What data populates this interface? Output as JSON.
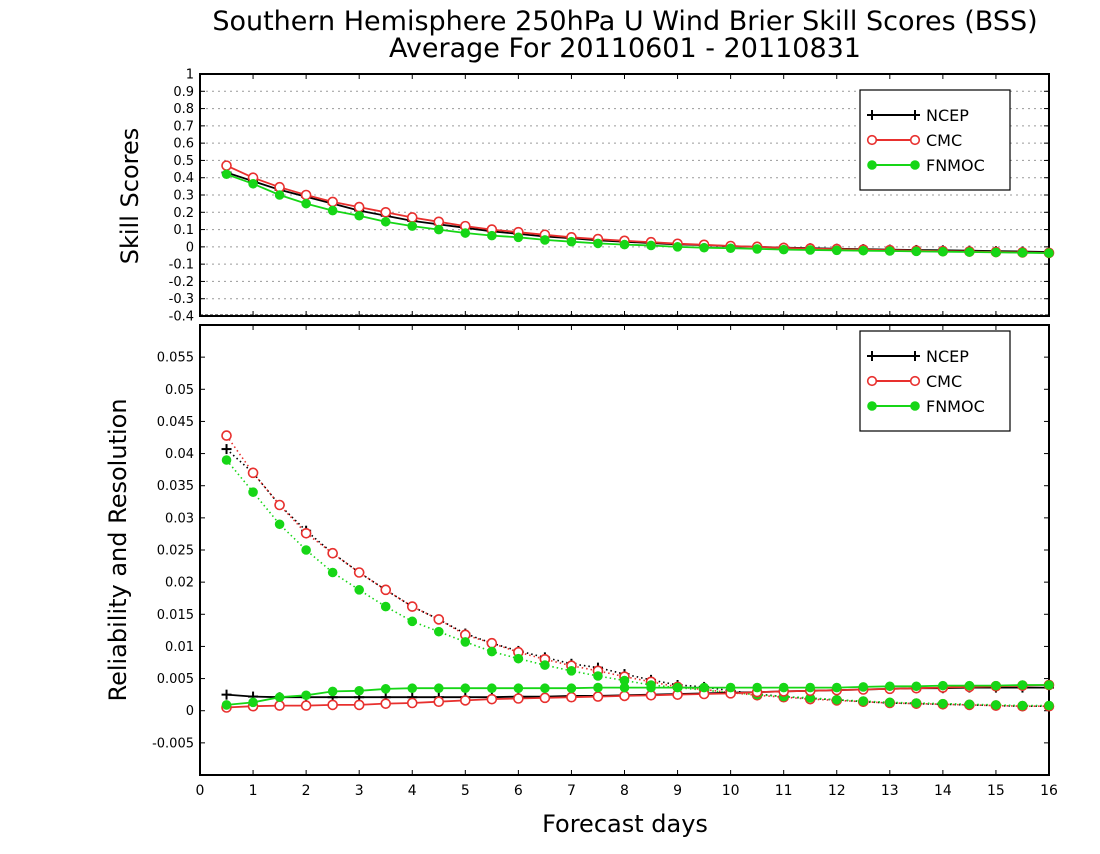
{
  "titles": {
    "line1": "Southern Hemisphere 250hPa U Wind Brier Skill Scores (BSS)",
    "line2": "Average For 20110601 - 20110831"
  },
  "colors": {
    "NCEP": "#000000",
    "CMC": "#e8302e",
    "FNMOC": "#16d616",
    "grid": "#9a9a9a",
    "frame": "#000000"
  },
  "chart_data": [
    {
      "type": "line",
      "ylabel": "Skill Scores",
      "xlabel": "Forecast days",
      "xlim": [
        0,
        16
      ],
      "ylim": [
        -0.4,
        1
      ],
      "x_ticks": [
        "0",
        "1",
        "2",
        "3",
        "4",
        "5",
        "6",
        "7",
        "8",
        "9",
        "10",
        "11",
        "12",
        "13",
        "14",
        "15",
        "16"
      ],
      "y_ticks": [
        "-0.4",
        "-0.3",
        "-0.2",
        "-0.1",
        "0",
        "0.1",
        "0.2",
        "0.3",
        "0.4",
        "0.5",
        "0.6",
        "0.7",
        "0.8",
        "0.9",
        "1"
      ],
      "grid": true,
      "legend_position": "top-right",
      "x": [
        0.5,
        1,
        1.5,
        2,
        2.5,
        3,
        3.5,
        4,
        4.5,
        5,
        5.5,
        6,
        6.5,
        7,
        7.5,
        8,
        8.5,
        9,
        9.5,
        10,
        10.5,
        11,
        11.5,
        12,
        12.5,
        13,
        13.5,
        14,
        14.5,
        15,
        15.5,
        16
      ],
      "series": [
        {
          "name": "NCEP",
          "marker": "plus",
          "values": [
            0.43,
            0.38,
            0.33,
            0.29,
            0.25,
            0.21,
            0.18,
            0.15,
            0.13,
            0.11,
            0.09,
            0.075,
            0.06,
            0.05,
            0.038,
            0.03,
            0.022,
            0.015,
            0.01,
            0.004,
            0.0,
            -0.005,
            -0.008,
            -0.011,
            -0.013,
            -0.016,
            -0.018,
            -0.02,
            -0.022,
            -0.025,
            -0.027,
            -0.03
          ]
        },
        {
          "name": "CMC",
          "marker": "open-circle",
          "values": [
            0.47,
            0.4,
            0.345,
            0.3,
            0.26,
            0.23,
            0.2,
            0.17,
            0.145,
            0.12,
            0.1,
            0.085,
            0.07,
            0.055,
            0.045,
            0.035,
            0.027,
            0.018,
            0.012,
            0.005,
            0.0,
            -0.006,
            -0.01,
            -0.013,
            -0.016,
            -0.019,
            -0.022,
            -0.025,
            -0.027,
            -0.03,
            -0.032,
            -0.035
          ]
        },
        {
          "name": "FNMOC",
          "marker": "filled-circle",
          "values": [
            0.42,
            0.365,
            0.3,
            0.25,
            0.21,
            0.18,
            0.145,
            0.12,
            0.1,
            0.08,
            0.065,
            0.055,
            0.04,
            0.03,
            0.02,
            0.013,
            0.008,
            0.0,
            -0.005,
            -0.008,
            -0.012,
            -0.016,
            -0.018,
            -0.02,
            -0.022,
            -0.024,
            -0.026,
            -0.028,
            -0.03,
            -0.032,
            -0.034,
            -0.036
          ]
        }
      ]
    },
    {
      "type": "line",
      "ylabel": "Reliability and Resolution",
      "xlabel": "Forecast days",
      "xlim": [
        0,
        16
      ],
      "ylim": [
        -0.01,
        0.06
      ],
      "x_ticks": [
        "0",
        "1",
        "2",
        "3",
        "4",
        "5",
        "6",
        "7",
        "8",
        "9",
        "10",
        "11",
        "12",
        "13",
        "14",
        "15",
        "16"
      ],
      "y_ticks": [
        "-0.005",
        "0",
        "0.005",
        "0.01",
        "0.015",
        "0.02",
        "0.025",
        "0.03",
        "0.035",
        "0.04",
        "0.045",
        "0.05",
        "0.055"
      ],
      "grid": false,
      "legend_position": "top-right",
      "x": [
        0.5,
        1,
        1.5,
        2,
        2.5,
        3,
        3.5,
        4,
        4.5,
        5,
        5.5,
        6,
        6.5,
        7,
        7.5,
        8,
        8.5,
        9,
        9.5,
        10,
        10.5,
        11,
        11.5,
        12,
        12.5,
        13,
        13.5,
        14,
        14.5,
        15,
        15.5,
        16
      ],
      "series": [
        {
          "name": "NCEP",
          "marker": "plus",
          "component": "resolution",
          "dash": "dotted",
          "values": [
            0.0407,
            0.037,
            0.032,
            0.028,
            0.0245,
            0.0215,
            0.0188,
            0.0162,
            0.0142,
            0.012,
            0.0105,
            0.0093,
            0.0083,
            0.0073,
            0.0067,
            0.0057,
            0.0048,
            0.004,
            0.0037,
            0.0031,
            0.0026,
            0.0022,
            0.0019,
            0.0017,
            0.0014,
            0.0012,
            0.0011,
            0.001,
            0.0009,
            0.0008,
            0.0007,
            0.0007
          ]
        },
        {
          "name": "CMC",
          "marker": "open-circle",
          "component": "resolution",
          "dash": "dotted",
          "values": [
            0.0428,
            0.037,
            0.032,
            0.0276,
            0.0245,
            0.0215,
            0.0188,
            0.0162,
            0.0142,
            0.0118,
            0.0105,
            0.0091,
            0.008,
            0.007,
            0.0062,
            0.0053,
            0.0045,
            0.0037,
            0.0033,
            0.0028,
            0.0024,
            0.0021,
            0.0018,
            0.0016,
            0.0014,
            0.0012,
            0.0011,
            0.001,
            0.0009,
            0.0008,
            0.0007,
            0.0007
          ]
        },
        {
          "name": "FNMOC",
          "marker": "filled-circle",
          "component": "resolution",
          "dash": "dotted",
          "values": [
            0.039,
            0.034,
            0.029,
            0.025,
            0.0215,
            0.0188,
            0.0162,
            0.0139,
            0.0123,
            0.0107,
            0.0092,
            0.0081,
            0.0071,
            0.0062,
            0.0054,
            0.0047,
            0.004,
            0.0036,
            0.0032,
            0.0028,
            0.0025,
            0.0022,
            0.002,
            0.0017,
            0.0015,
            0.0013,
            0.0012,
            0.0011,
            0.001,
            0.0009,
            0.0008,
            0.0008
          ]
        },
        {
          "name": "NCEP",
          "marker": "plus",
          "component": "reliability",
          "dash": "solid",
          "values": [
            0.0025,
            0.0022,
            0.0021,
            0.0021,
            0.0021,
            0.0021,
            0.0021,
            0.0021,
            0.0021,
            0.0021,
            0.0021,
            0.0022,
            0.0022,
            0.0023,
            0.0023,
            0.0024,
            0.0025,
            0.0026,
            0.0027,
            0.0028,
            0.0029,
            0.003,
            0.0031,
            0.0032,
            0.0033,
            0.0034,
            0.0035,
            0.0035,
            0.0036,
            0.0036,
            0.0036,
            0.0036
          ]
        },
        {
          "name": "CMC",
          "marker": "open-circle",
          "component": "reliability",
          "dash": "solid",
          "values": [
            0.0005,
            0.0007,
            0.0008,
            0.0008,
            0.0009,
            0.0009,
            0.0011,
            0.0012,
            0.0014,
            0.0016,
            0.0018,
            0.0019,
            0.002,
            0.0021,
            0.0022,
            0.0023,
            0.0024,
            0.0025,
            0.0026,
            0.0027,
            0.0029,
            0.003,
            0.0031,
            0.0032,
            0.0033,
            0.0034,
            0.0035,
            0.0036,
            0.0037,
            0.0038,
            0.0039,
            0.004
          ]
        },
        {
          "name": "FNMOC",
          "marker": "filled-circle",
          "component": "reliability",
          "dash": "solid",
          "values": [
            0.0009,
            0.0013,
            0.0021,
            0.0024,
            0.003,
            0.0031,
            0.0034,
            0.0035,
            0.0035,
            0.0035,
            0.0035,
            0.0035,
            0.0035,
            0.0035,
            0.0036,
            0.0036,
            0.0036,
            0.0036,
            0.0036,
            0.0036,
            0.0036,
            0.0036,
            0.0036,
            0.0036,
            0.0037,
            0.0038,
            0.0038,
            0.0039,
            0.0039,
            0.0039,
            0.004,
            0.004
          ]
        }
      ]
    }
  ],
  "legend": [
    "NCEP",
    "CMC",
    "FNMOC"
  ]
}
